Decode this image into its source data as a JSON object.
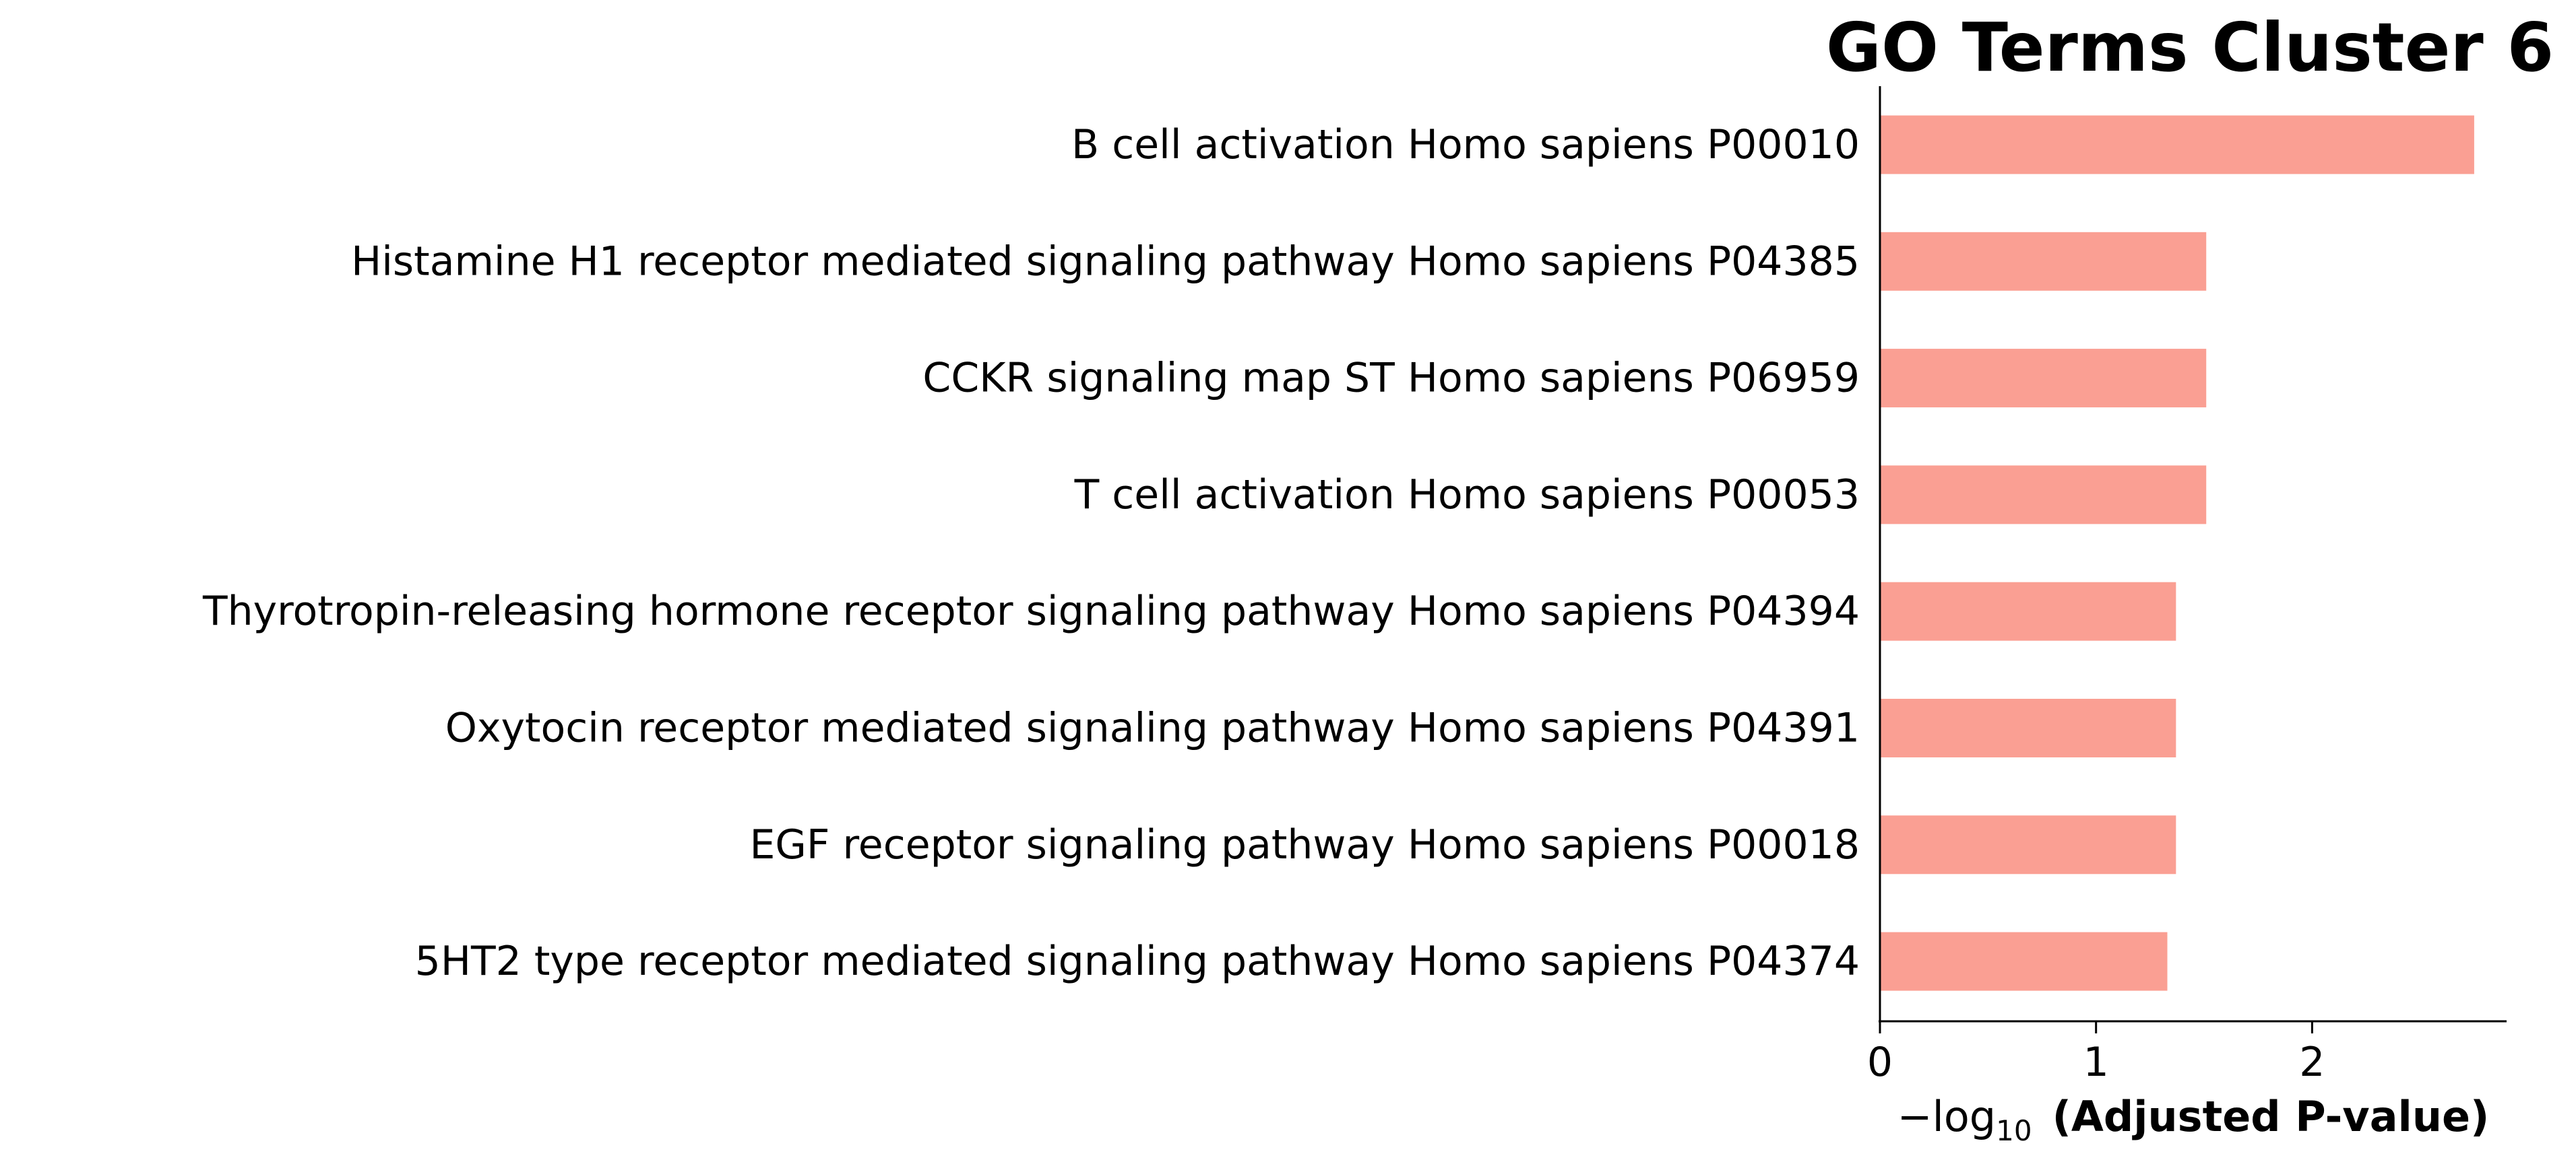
{
  "chart_data": {
    "type": "bar",
    "orientation": "horizontal",
    "title": "GO Terms Cluster 6",
    "xlabel": {
      "prefix": "−log",
      "subscript": "10",
      "bold_text": "(Adjusted P-value)"
    },
    "ylabel": "",
    "categories": [
      "B cell activation Homo sapiens P00010",
      "Histamine H1 receptor mediated signaling pathway Homo sapiens P04385",
      "CCKR signaling map ST Homo sapiens P06959",
      "T cell activation Homo sapiens P00053",
      "Thyrotropin-releasing hormone receptor signaling pathway Homo sapiens P04394",
      "Oxytocin receptor mediated signaling pathway Homo sapiens P04391",
      "EGF receptor signaling pathway Homo sapiens P00018",
      "5HT2 type receptor mediated signaling pathway Homo sapiens P04374"
    ],
    "values": [
      2.75,
      1.51,
      1.51,
      1.51,
      1.37,
      1.37,
      1.37,
      1.33
    ],
    "xlim": [
      0,
      2.9
    ],
    "xticks": [
      0,
      1,
      2
    ],
    "xtick_labels": [
      "0",
      "1",
      "2"
    ],
    "bar_color": "#fa9f93",
    "grid": false,
    "legend": "none"
  }
}
